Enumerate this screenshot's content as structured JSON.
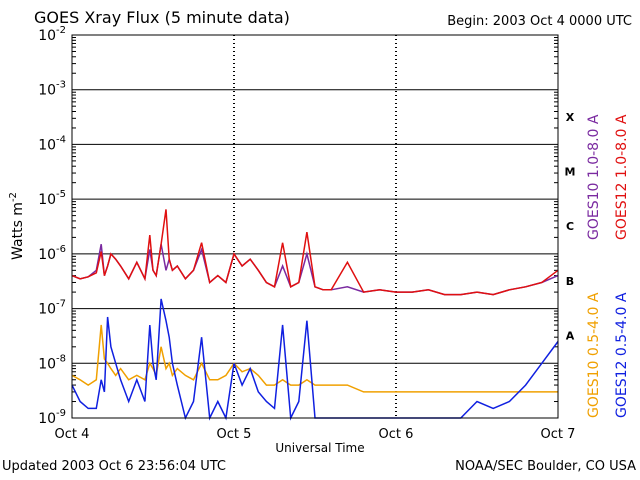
{
  "header": {
    "title": "GOES Xray Flux (5 minute data)",
    "begin": "Begin:  2003 Oct 4 0000 UTC"
  },
  "footer": {
    "updated": "Updated 2003 Oct  6 23:56:04 UTC",
    "credit": "NOAA/SEC Boulder, CO USA"
  },
  "chart_data": {
    "type": "line",
    "title": "GOES Xray Flux (5 minute data)",
    "xlabel": "Universal Time",
    "ylabel": "Watts m",
    "ylabel_sup": "-2",
    "y_scale": "log",
    "ylim": [
      1e-09,
      0.01
    ],
    "y_ticks": [
      {
        "base": "10",
        "exp": "-2",
        "value": 0.01
      },
      {
        "base": "10",
        "exp": "-3",
        "value": 0.001
      },
      {
        "base": "10",
        "exp": "-4",
        "value": 0.0001
      },
      {
        "base": "10",
        "exp": "-5",
        "value": 1e-05
      },
      {
        "base": "10",
        "exp": "-6",
        "value": 1e-06
      },
      {
        "base": "10",
        "exp": "-7",
        "value": 1e-07
      },
      {
        "base": "10",
        "exp": "-8",
        "value": 1e-08
      },
      {
        "base": "10",
        "exp": "-9",
        "value": 1e-09
      }
    ],
    "xlim": [
      "2003-10-04",
      "2003-10-07"
    ],
    "x_ticks": [
      {
        "label": "Oct 4",
        "day": 0
      },
      {
        "label": "Oct 5",
        "day": 1
      },
      {
        "label": "Oct 6",
        "day": 2
      },
      {
        "label": "Oct 7",
        "day": 3
      }
    ],
    "flare_classes": [
      {
        "label": "X",
        "value": 0.00032
      },
      {
        "label": "M",
        "value": 3.2e-05
      },
      {
        "label": "C",
        "value": 3.2e-06
      },
      {
        "label": "B",
        "value": 3.2e-07
      },
      {
        "label": "A",
        "value": 3.2e-08
      }
    ],
    "grid": true,
    "legend_position": "right-vertical",
    "series": [
      {
        "name": "GOES10 1.0-8.0 A",
        "color": "#7a2aa0",
        "x": [
          0,
          0.05,
          0.1,
          0.15,
          0.18,
          0.2,
          0.22,
          0.24,
          0.27,
          0.3,
          0.35,
          0.4,
          0.45,
          0.48,
          0.5,
          0.52,
          0.55,
          0.58,
          0.6,
          0.62,
          0.65,
          0.7,
          0.75,
          0.8,
          0.85,
          0.9,
          0.95,
          1.0,
          1.05,
          1.1,
          1.15,
          1.2,
          1.25,
          1.3,
          1.35,
          1.4,
          1.45,
          1.5,
          1.55,
          1.6,
          1.7,
          1.8,
          1.9,
          2.0,
          2.1,
          2.2,
          2.3,
          2.4,
          2.5,
          2.6,
          2.7,
          2.8,
          2.9,
          3.0
        ],
        "y": [
          4e-07,
          3.5e-07,
          3.8e-07,
          5e-07,
          1.5e-06,
          4e-07,
          6e-07,
          1e-06,
          8e-07,
          6e-07,
          3.5e-07,
          7e-07,
          3.5e-07,
          1.2e-06,
          5e-07,
          4e-07,
          1.5e-06,
          5e-07,
          8e-07,
          5e-07,
          6e-07,
          3.5e-07,
          5e-07,
          1.2e-06,
          3e-07,
          4e-07,
          3e-07,
          1e-06,
          6e-07,
          8e-07,
          5e-07,
          3e-07,
          2.5e-07,
          6e-07,
          2.5e-07,
          3e-07,
          1e-06,
          2.5e-07,
          2.2e-07,
          2.2e-07,
          2.5e-07,
          2e-07,
          2.2e-07,
          2e-07,
          2e-07,
          2.2e-07,
          1.8e-07,
          1.8e-07,
          2e-07,
          1.8e-07,
          2.2e-07,
          2.5e-07,
          3e-07,
          4e-07
        ]
      },
      {
        "name": "GOES12 1.0-8.0 A",
        "color": "#e01010",
        "x": [
          0,
          0.05,
          0.1,
          0.15,
          0.18,
          0.2,
          0.22,
          0.24,
          0.27,
          0.3,
          0.35,
          0.4,
          0.45,
          0.48,
          0.5,
          0.52,
          0.55,
          0.58,
          0.6,
          0.62,
          0.65,
          0.7,
          0.75,
          0.8,
          0.85,
          0.9,
          0.95,
          1.0,
          1.05,
          1.1,
          1.15,
          1.2,
          1.25,
          1.3,
          1.35,
          1.4,
          1.45,
          1.5,
          1.55,
          1.6,
          1.7,
          1.8,
          1.9,
          2.0,
          2.1,
          2.2,
          2.3,
          2.4,
          2.5,
          2.6,
          2.7,
          2.8,
          2.9,
          3.0
        ],
        "y": [
          4e-07,
          3.5e-07,
          3.8e-07,
          4.5e-07,
          1.1e-06,
          4e-07,
          6e-07,
          1e-06,
          8e-07,
          6e-07,
          3.5e-07,
          7e-07,
          3.5e-07,
          2.2e-06,
          5e-07,
          4e-07,
          1.5e-06,
          6.5e-06,
          8e-07,
          5e-07,
          6e-07,
          3.5e-07,
          5e-07,
          1.6e-06,
          3e-07,
          4e-07,
          3e-07,
          1e-06,
          6e-07,
          8e-07,
          5e-07,
          3e-07,
          2.5e-07,
          1.6e-06,
          2.5e-07,
          3e-07,
          2.5e-06,
          2.5e-07,
          2.2e-07,
          2.2e-07,
          7e-07,
          2e-07,
          2.2e-07,
          2e-07,
          2e-07,
          2.2e-07,
          1.8e-07,
          1.8e-07,
          2e-07,
          1.8e-07,
          2.2e-07,
          2.5e-07,
          3e-07,
          5e-07
        ]
      },
      {
        "name": "GOES10 0.5-4.0 A",
        "color": "#f0a000",
        "x": [
          0,
          0.05,
          0.1,
          0.15,
          0.18,
          0.2,
          0.22,
          0.24,
          0.27,
          0.3,
          0.35,
          0.4,
          0.45,
          0.48,
          0.5,
          0.52,
          0.55,
          0.58,
          0.6,
          0.62,
          0.65,
          0.7,
          0.75,
          0.8,
          0.85,
          0.9,
          0.95,
          1.0,
          1.05,
          1.1,
          1.15,
          1.2,
          1.25,
          1.3,
          1.35,
          1.4,
          1.45,
          1.5,
          1.55,
          1.6,
          1.7,
          1.8,
          1.9,
          2.0,
          2.1,
          2.2,
          2.3,
          2.4,
          2.5,
          2.6,
          2.7,
          2.8,
          2.9,
          3.0
        ],
        "y": [
          6e-09,
          5e-09,
          4e-09,
          5e-09,
          5e-08,
          1.2e-08,
          1e-08,
          8e-09,
          6e-09,
          8e-09,
          5e-09,
          6e-09,
          5e-09,
          1e-08,
          8e-09,
          6e-09,
          2e-08,
          8e-09,
          1e-08,
          6e-09,
          8e-09,
          6e-09,
          5e-09,
          1e-08,
          5e-09,
          5e-09,
          6e-09,
          1e-08,
          7e-09,
          8e-09,
          6e-09,
          4e-09,
          4e-09,
          5e-09,
          4e-09,
          4e-09,
          5e-09,
          4e-09,
          4e-09,
          4e-09,
          4e-09,
          3e-09,
          3e-09,
          3e-09,
          3e-09,
          3e-09,
          3e-09,
          3e-09,
          3e-09,
          3e-09,
          3e-09,
          3e-09,
          3e-09,
          3e-09
        ]
      },
      {
        "name": "GOES12 0.5-4.0 A",
        "color": "#1020e0",
        "x": [
          0,
          0.05,
          0.1,
          0.15,
          0.18,
          0.2,
          0.22,
          0.24,
          0.27,
          0.3,
          0.35,
          0.4,
          0.45,
          0.48,
          0.5,
          0.52,
          0.55,
          0.58,
          0.6,
          0.62,
          0.65,
          0.7,
          0.75,
          0.8,
          0.85,
          0.9,
          0.95,
          1.0,
          1.05,
          1.1,
          1.15,
          1.2,
          1.25,
          1.3,
          1.35,
          1.4,
          1.45,
          1.5,
          1.55,
          1.6,
          1.7,
          1.8,
          1.9,
          2.0,
          2.1,
          2.2,
          2.3,
          2.4,
          2.5,
          2.6,
          2.7,
          2.8,
          2.9,
          3.0
        ],
        "y": [
          4e-09,
          2e-09,
          1.5e-09,
          1.5e-09,
          5e-09,
          3e-09,
          7e-08,
          2e-08,
          1e-08,
          5e-09,
          2e-09,
          5e-09,
          2e-09,
          5e-08,
          1e-08,
          5e-09,
          1.5e-07,
          6e-08,
          3e-08,
          1e-08,
          4e-09,
          1e-09,
          2e-09,
          3e-08,
          1e-09,
          2e-09,
          1e-09,
          1e-08,
          4e-09,
          8e-09,
          3e-09,
          2e-09,
          1.5e-09,
          5e-08,
          1e-09,
          2e-09,
          6e-08,
          1e-09,
          1e-09,
          1e-09,
          1e-09,
          1e-09,
          1e-09,
          1e-09,
          1e-09,
          1e-09,
          1e-09,
          1e-09,
          2e-09,
          1.5e-09,
          2e-09,
          4e-09,
          1e-08,
          2.5e-08
        ]
      }
    ]
  }
}
